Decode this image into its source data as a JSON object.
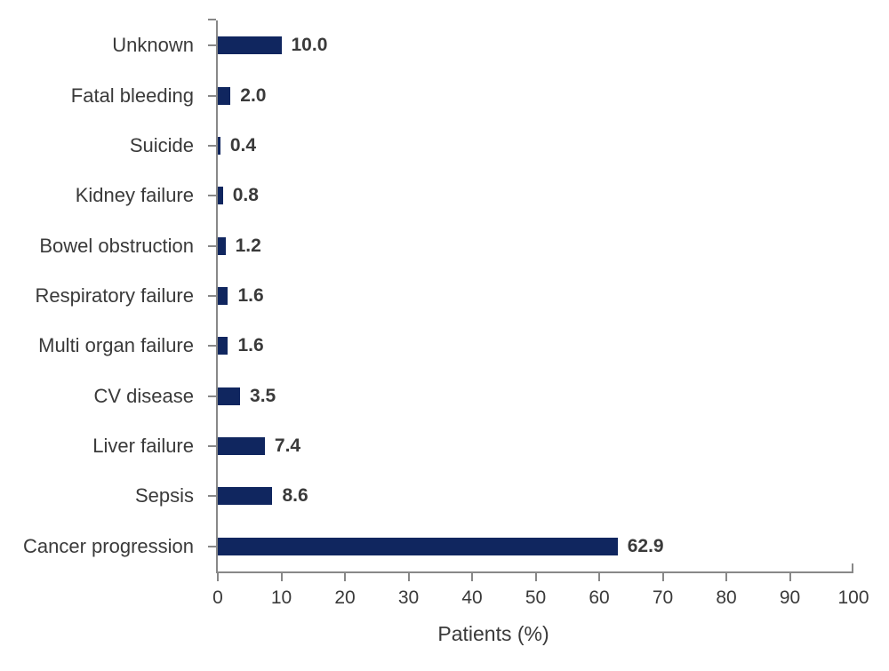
{
  "figure": {
    "background": "#ffffff"
  },
  "chart_data": {
    "type": "bar",
    "orientation": "horizontal",
    "title": "",
    "xlabel": "Patients (%)",
    "ylabel": "",
    "xlim": [
      0,
      100
    ],
    "xticks": [
      0,
      10,
      20,
      30,
      40,
      50,
      60,
      70,
      80,
      90,
      100
    ],
    "grid": false,
    "legend": null,
    "bar_color": "#10265f",
    "text_color": "#3a3a3a",
    "axis_color": "#888888",
    "categories": [
      "Unknown",
      "Fatal bleeding",
      "Suicide",
      "Kidney failure",
      "Bowel obstruction",
      "Respiratory failure",
      "Multi organ failure",
      "CV disease",
      "Liver failure",
      "Sepsis",
      "Cancer progression"
    ],
    "values": [
      10.0,
      2.0,
      0.4,
      0.8,
      1.2,
      1.6,
      1.6,
      3.5,
      7.4,
      8.6,
      62.9
    ],
    "value_labels": [
      "10.0",
      "2.0",
      "0.4",
      "0.8",
      "1.2",
      "1.6",
      "1.6",
      "3.5",
      "7.4",
      "8.6",
      "62.9"
    ]
  }
}
